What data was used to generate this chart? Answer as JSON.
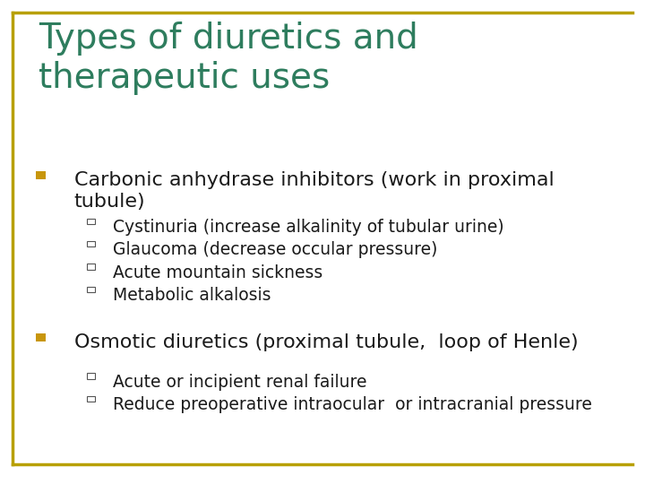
{
  "title_line1": "Types of diuretics and",
  "title_line2": "therapeutic uses",
  "title_color": "#2E7D5E",
  "background_color": "#FFFFFF",
  "border_color": "#B8A000",
  "bullet_color": "#C8960C",
  "text_color": "#1a1a1a",
  "main_bullets": [
    "Carbonic anhydrase inhibitors (work in proximal\ntubule)",
    "Osmotic diuretics (proximal tubule,  loop of Henle)"
  ],
  "sub_bullets_1": [
    "Cystinuria (increase alkalinity of tubular urine)",
    "Glaucoma (decrease occular pressure)",
    "Acute mountain sickness",
    "Metabolic alkalosis"
  ],
  "sub_bullets_2": [
    "Acute or incipient renal failure",
    "Reduce preoperative intraocular  or intracranial pressure"
  ],
  "title_fontsize": 28,
  "main_fontsize": 16,
  "sub_fontsize": 13.5
}
